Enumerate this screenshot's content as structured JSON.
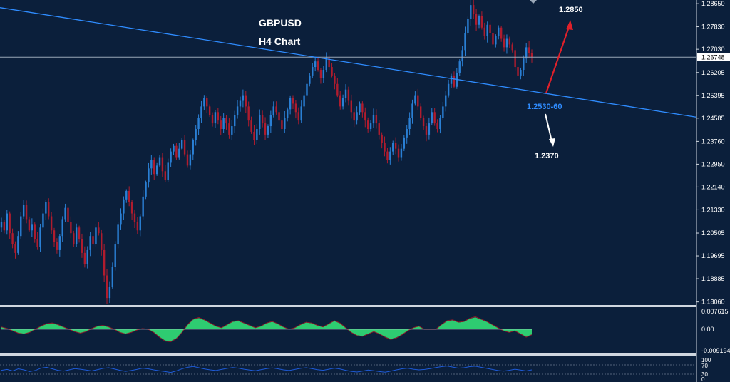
{
  "chart_data": {
    "type": "candlestick",
    "title": "GBPUSD",
    "subtitle": "H4 Chart",
    "y_ticks": [
      "1.28650",
      "1.27830",
      "1.27030",
      "1.26205",
      "1.25395",
      "1.24585",
      "1.23760",
      "1.22950",
      "1.22140",
      "1.21330",
      "1.20505",
      "1.19695",
      "1.18885",
      "1.18060"
    ],
    "ylim": [
      1.1795,
      1.2878
    ],
    "current_price": 1.26748,
    "current_price_label": "1.26748",
    "trendline": {
      "start_price": 1.2851,
      "end_price": 1.2462
    },
    "annotations": {
      "target_up": "1.2850",
      "support_zone": "1.2530-60",
      "target_down": "1.2370"
    },
    "candles_close": [
      1.209,
      1.206,
      1.212,
      1.205,
      1.201,
      1.198,
      1.204,
      1.211,
      1.215,
      1.21,
      1.206,
      1.208,
      1.203,
      1.2,
      1.207,
      1.212,
      1.216,
      1.211,
      1.206,
      1.202,
      1.199,
      1.204,
      1.21,
      1.214,
      1.209,
      1.205,
      1.201,
      1.207,
      1.203,
      1.198,
      1.194,
      1.199,
      1.204,
      1.201,
      1.207,
      1.205,
      1.199,
      1.19,
      1.182,
      1.186,
      1.193,
      1.201,
      1.208,
      1.212,
      1.217,
      1.22,
      1.216,
      1.212,
      1.209,
      1.206,
      1.211,
      1.218,
      1.223,
      1.228,
      1.231,
      1.226,
      1.229,
      1.232,
      1.227,
      1.224,
      1.23,
      1.234,
      1.236,
      1.232,
      1.235,
      1.238,
      1.233,
      1.229,
      1.233,
      1.238,
      1.242,
      1.246,
      1.25,
      1.253,
      1.25,
      1.247,
      1.244,
      1.248,
      1.245,
      1.242,
      1.246,
      1.244,
      1.24,
      1.243,
      1.247,
      1.25,
      1.252,
      1.254,
      1.25,
      1.245,
      1.241,
      1.238,
      1.242,
      1.247,
      1.244,
      1.24,
      1.243,
      1.247,
      1.25,
      1.248,
      1.245,
      1.242,
      1.246,
      1.249,
      1.253,
      1.251,
      1.248,
      1.245,
      1.25,
      1.254,
      1.258,
      1.261,
      1.264,
      1.266,
      1.263,
      1.26,
      1.263,
      1.267,
      1.264,
      1.261,
      1.258,
      1.254,
      1.25,
      1.253,
      1.256,
      1.252,
      1.248,
      1.245,
      1.248,
      1.251,
      1.248,
      1.245,
      1.242,
      1.244,
      1.247,
      1.244,
      1.24,
      1.237,
      1.234,
      1.231,
      1.234,
      1.237,
      1.235,
      1.232,
      1.235,
      1.239,
      1.242,
      1.246,
      1.251,
      1.254,
      1.25,
      1.246,
      1.243,
      1.24,
      1.244,
      1.248,
      1.244,
      1.242,
      1.246,
      1.25,
      1.254,
      1.258,
      1.261,
      1.257,
      1.262,
      1.266,
      1.27,
      1.276,
      1.281,
      1.286,
      1.283,
      1.279,
      1.282,
      1.278,
      1.275,
      1.279,
      1.276,
      1.272,
      1.275,
      1.278,
      1.274,
      1.271,
      1.274,
      1.272,
      1.27,
      1.264,
      1.261,
      1.263,
      1.267,
      1.271,
      1.269,
      1.2675
    ],
    "oscillator": {
      "top_label": "0.007615",
      "zero_label": "0.00",
      "bottom_label": "-0.009194",
      "values": [
        0.0015,
        0.0005,
        -0.001,
        -0.0025,
        -0.003,
        -0.002,
        0.0,
        0.002,
        0.0035,
        0.004,
        0.003,
        0.0015,
        0.0,
        -0.0015,
        -0.0025,
        -0.0015,
        0.0005,
        0.002,
        0.0025,
        0.0015,
        0.0,
        -0.002,
        -0.003,
        -0.002,
        -0.0005,
        0.0005,
        0.0,
        -0.002,
        -0.005,
        -0.0075,
        -0.008,
        -0.006,
        -0.002,
        0.003,
        0.0065,
        0.0075,
        0.006,
        0.004,
        0.002,
        0.001,
        0.003,
        0.005,
        0.0055,
        0.004,
        0.0025,
        0.001,
        0.002,
        0.004,
        0.005,
        0.0035,
        0.0015,
        0.0,
        0.001,
        0.003,
        0.0045,
        0.004,
        0.0025,
        0.0015,
        0.0035,
        0.0055,
        0.004,
        0.001,
        -0.002,
        -0.004,
        -0.0045,
        -0.003,
        -0.0015,
        -0.003,
        -0.005,
        -0.0065,
        -0.0055,
        -0.0035,
        -0.001,
        0.001,
        0.002,
        0.0,
        0.0,
        0.0,
        0.003,
        0.0055,
        0.006,
        0.0045,
        0.005,
        0.007,
        0.008,
        0.0065,
        0.005,
        0.003,
        0.001,
        -0.001,
        -0.002,
        -0.001,
        -0.003,
        -0.005,
        -0.0035
      ],
      "positive_color": "#2ecc71",
      "negative_color": "#2ecc71"
    },
    "rsi": {
      "labels": [
        "100",
        "70",
        "30",
        "0"
      ],
      "values": [
        48,
        52,
        45,
        55,
        50,
        42,
        47,
        58,
        62,
        55,
        48,
        44,
        50,
        56,
        53,
        49,
        45,
        51,
        57,
        60,
        54,
        48,
        43,
        47,
        52,
        58,
        55,
        50,
        46,
        42,
        38,
        45,
        55,
        62,
        66,
        60,
        54,
        50,
        47,
        52,
        57,
        61,
        58,
        53,
        49,
        46,
        51,
        56,
        59,
        55,
        50,
        47,
        52,
        57,
        60,
        56,
        51,
        48,
        53,
        58,
        54,
        48,
        43,
        40,
        44,
        49,
        46,
        42,
        39,
        44,
        50,
        55,
        58,
        53,
        50,
        52,
        56,
        61,
        65,
        68,
        63,
        58,
        60,
        65,
        67,
        62,
        57,
        52,
        47,
        44,
        48,
        53,
        49,
        45,
        50
      ],
      "line_color": "#1e5bd8"
    },
    "colors": {
      "background": "#0b1f3b",
      "bull_candle": "#2a7fd4",
      "bear_candle": "#b01c2e",
      "trendline": "#2f8cff",
      "up_arrow": "#e0202a",
      "down_arrow": "#ffffff",
      "support_label": "#2f8cff",
      "panel_divider": "#cfd6df"
    }
  }
}
